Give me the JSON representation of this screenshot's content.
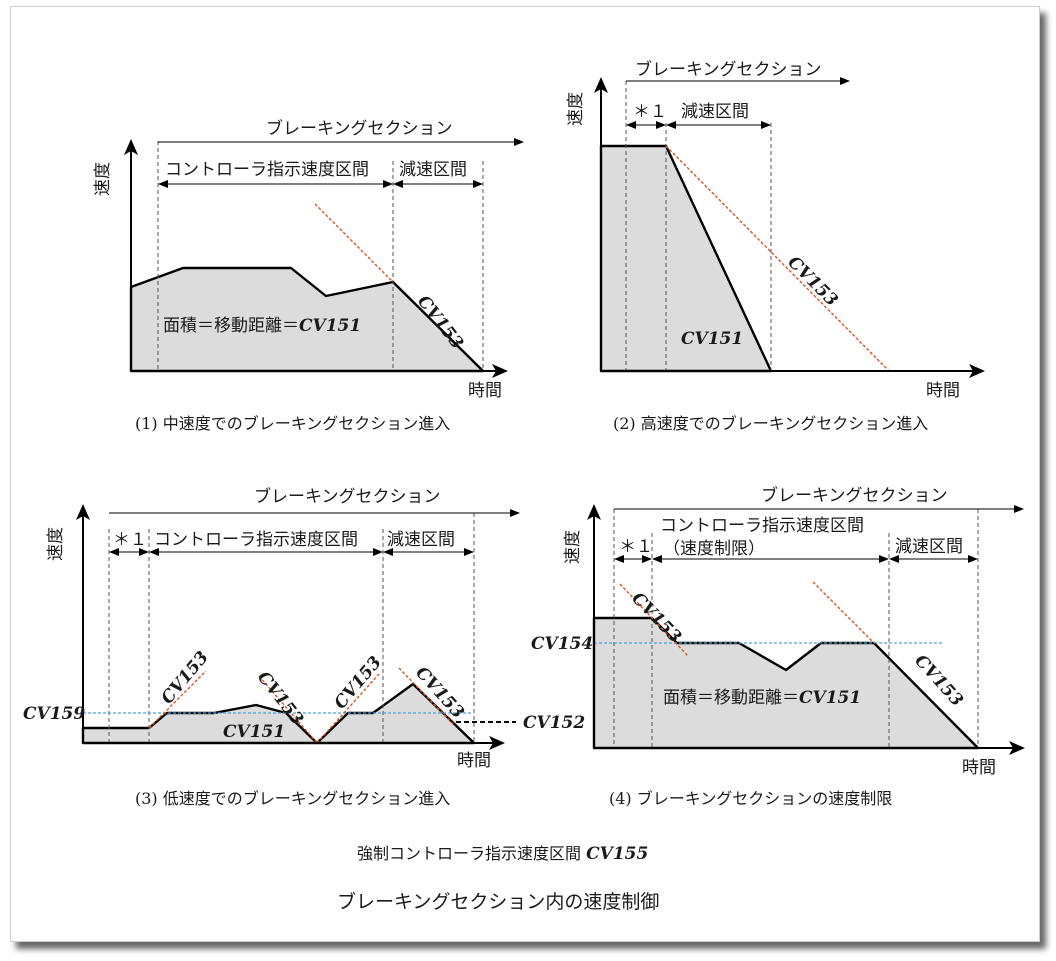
{
  "labels": {
    "speed": "速度",
    "time": "時間",
    "braking_section": "ブレーキングセクション",
    "controller_section": "コントローラ指示速度区間",
    "decel_section": "減速区間",
    "star1": "＊１",
    "speed_limit": "（速度制限）",
    "area_eq": "面積＝移動距離＝",
    "cv151": "CV151",
    "cv152": "CV152",
    "cv153": "CV153",
    "cv154": "CV154",
    "cv155": "CV155",
    "cv159": "CV159"
  },
  "captions": {
    "c1": "(1) 中速度でのブレーキングセクション進入",
    "c2": "(2) 高速度でのブレーキングセクション進入",
    "c3": "(3) 低速度でのブレーキングセクション進入",
    "c4": "(4) ブレーキングセクションの速度制限"
  },
  "footer": {
    "forced_section": "強制コントローラ指示速度区間",
    "title": "ブレーキングセクション内の速度制御"
  }
}
